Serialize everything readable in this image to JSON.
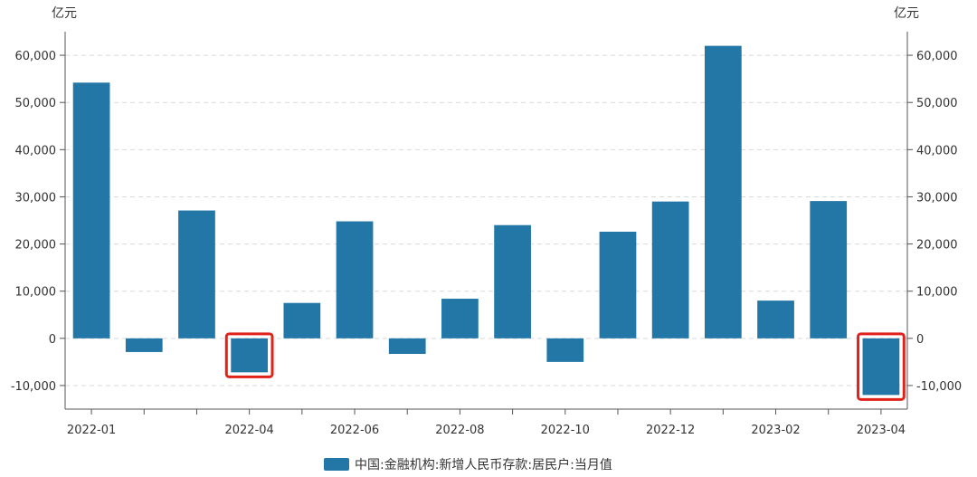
{
  "chart_data": {
    "type": "bar",
    "unit_left": "亿元",
    "unit_right": "亿元",
    "categories": [
      "2022-01",
      "2022-02",
      "2022-03",
      "2022-04",
      "2022-05",
      "2022-06",
      "2022-07",
      "2022-08",
      "2022-09",
      "2022-10",
      "2022-11",
      "2022-12",
      "2023-01",
      "2023-02",
      "2023-03",
      "2023-04"
    ],
    "x_tick_labels": [
      "2022-01",
      "2022-04",
      "2022-06",
      "2022-08",
      "2022-10",
      "2022-12",
      "2023-02",
      "2023-04"
    ],
    "series": [
      {
        "name": "中国:金融机构:新增人民币存款:居民户:当月值",
        "color": "#2277a6",
        "values": [
          54200,
          -2900,
          27100,
          -7200,
          7500,
          24800,
          -3300,
          8400,
          24000,
          -5000,
          22600,
          29000,
          62000,
          8000,
          29100,
          -12000
        ]
      }
    ],
    "ylim": [
      -15000,
      65000
    ],
    "y_ticks": [
      -10000,
      0,
      10000,
      20000,
      30000,
      40000,
      50000,
      60000
    ],
    "y_tick_labels": [
      "-10,000",
      "0",
      "10,000",
      "20,000",
      "30,000",
      "40,000",
      "50,000",
      "60,000"
    ],
    "highlighted_categories": [
      "2022-04",
      "2023-04"
    ],
    "highlight_color": "#e0221b",
    "grid": true,
    "legend_position": "bottom-center"
  }
}
